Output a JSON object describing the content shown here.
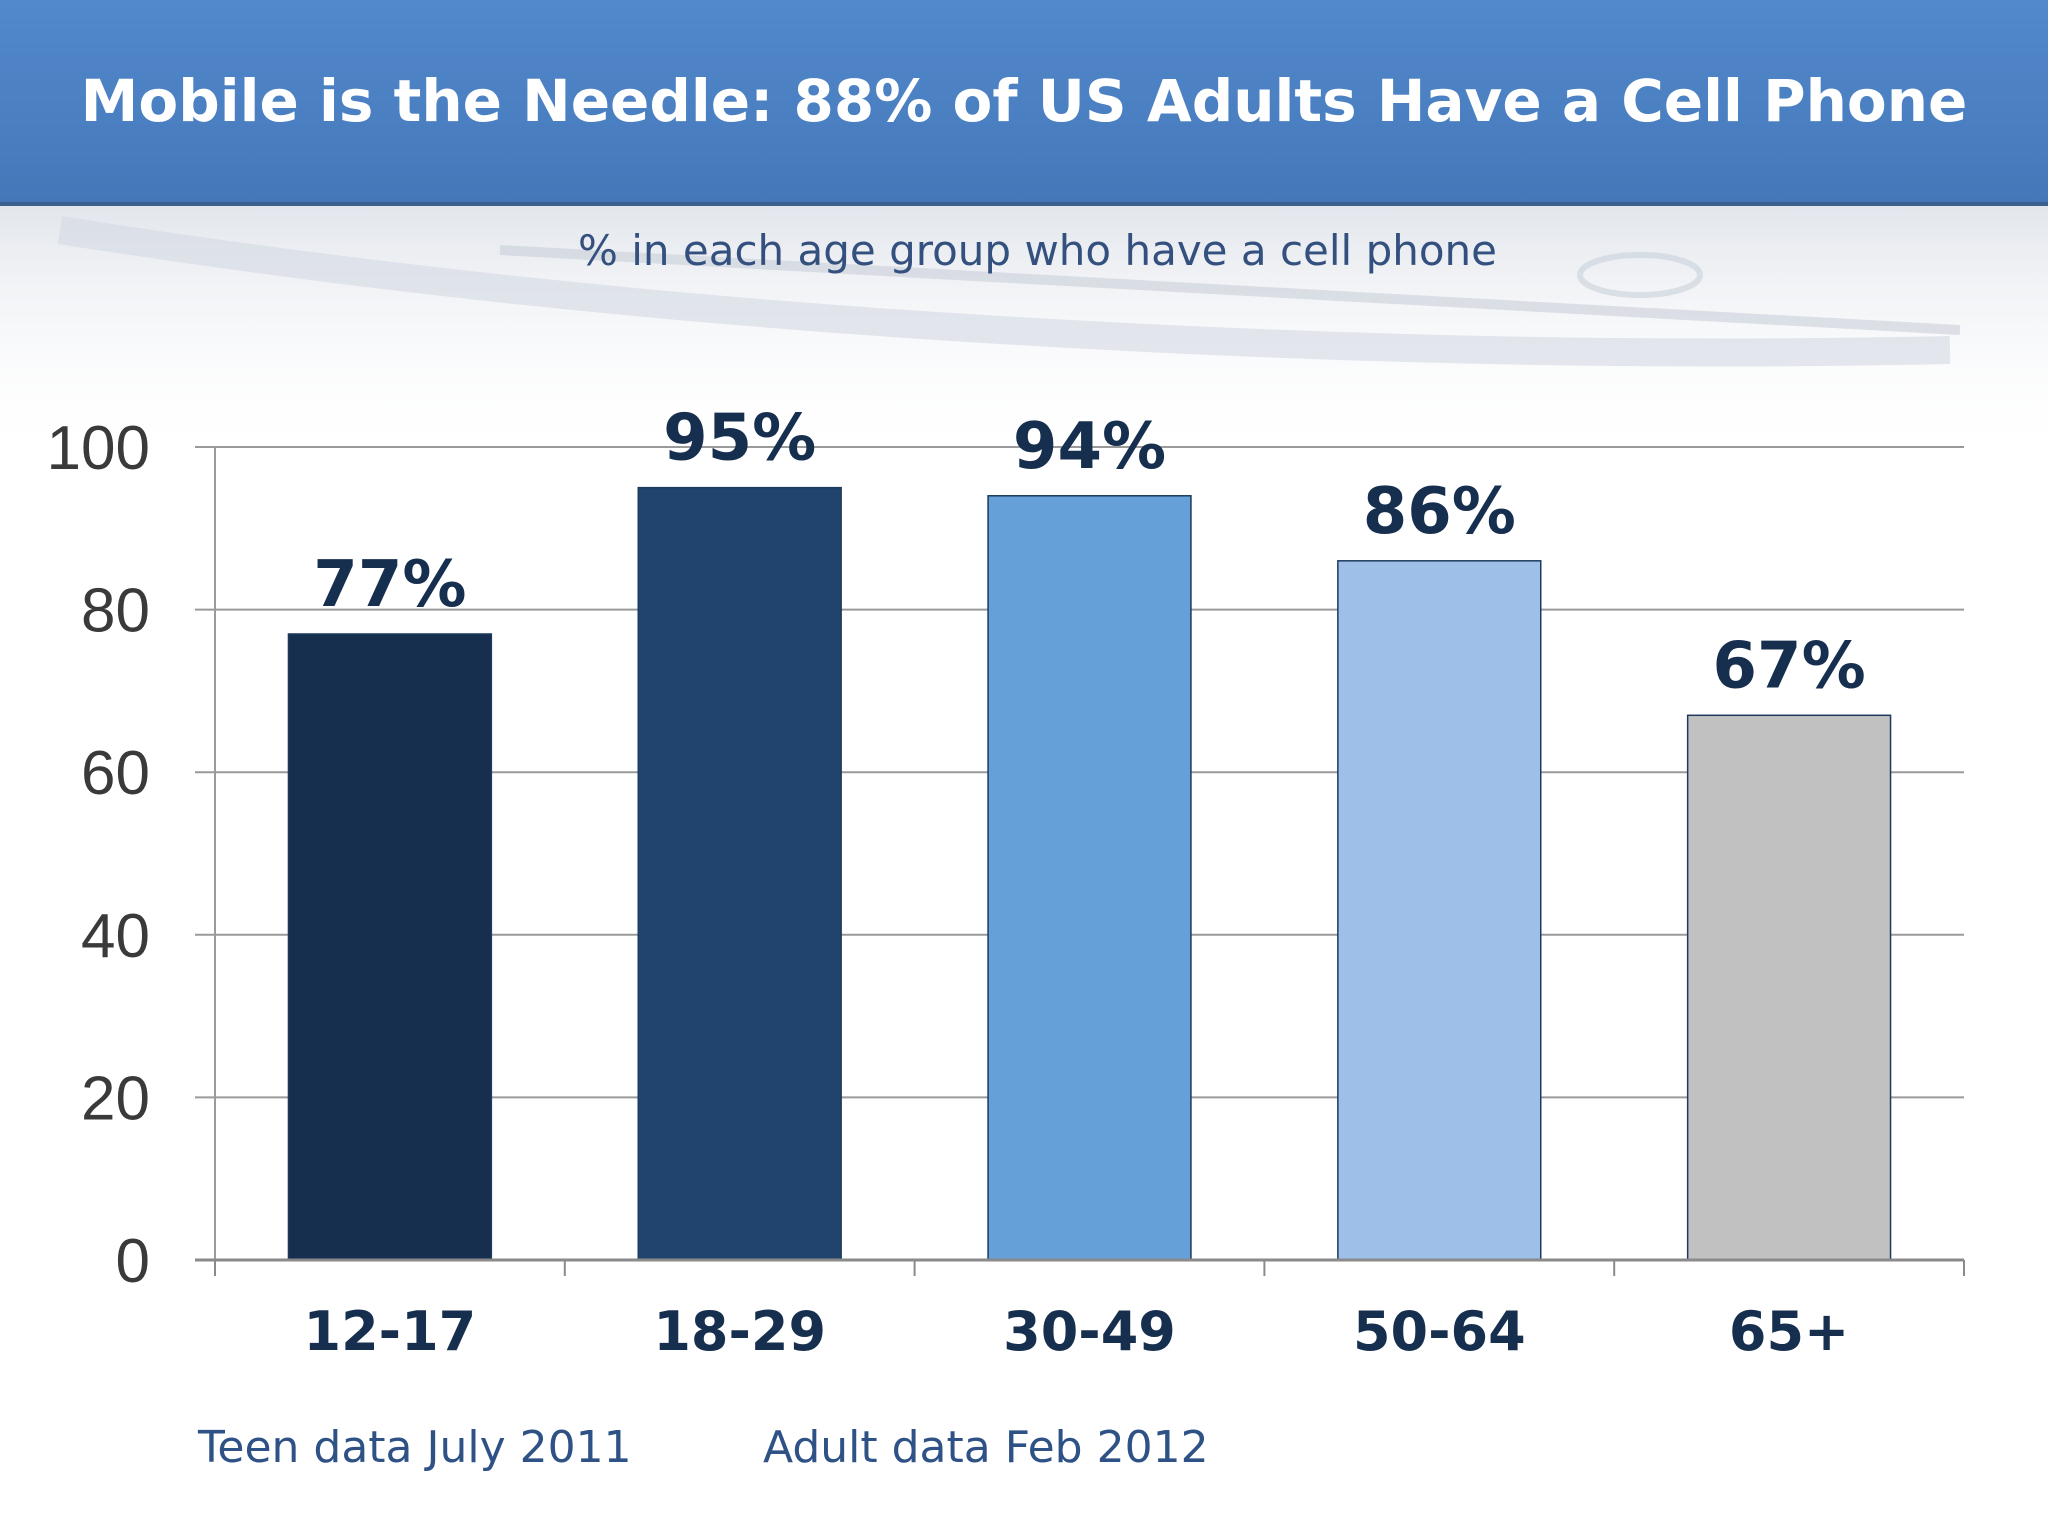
{
  "header": {
    "title": "Mobile is the Needle: 88% of US Adults Have a Cell Phone"
  },
  "subtitle": "% in each age group who have a cell phone",
  "footnotes": {
    "teen": "Teen data July 2011",
    "adult": "Adult data Feb 2012"
  },
  "colors": {
    "title_bar": "#4f83c5",
    "bar_12_17": "#172f4f",
    "bar_18_29": "#21446e",
    "bar_30_49": "#65a0d9",
    "bar_50_64": "#9dbfe8",
    "bar_65_plus": "#c1c1c1",
    "value_label": "#172f4f"
  },
  "chart_data": {
    "type": "bar",
    "title": "Mobile is the Needle: 88% of US Adults Have a Cell Phone",
    "subtitle": "% in each age group who have a cell phone",
    "categories": [
      "12-17",
      "18-29",
      "30-49",
      "50-64",
      "65+"
    ],
    "values": [
      77,
      95,
      94,
      86,
      67
    ],
    "value_labels": [
      "77%",
      "95%",
      "94%",
      "86%",
      "67%"
    ],
    "bar_colors": [
      "#172f4f",
      "#21446e",
      "#65a0d9",
      "#9dbfe8",
      "#c1c1c1"
    ],
    "y_ticks": [
      "0",
      "20",
      "40",
      "60",
      "80",
      "100"
    ],
    "ylim": [
      0,
      100
    ],
    "grid": true,
    "legend": "none"
  }
}
